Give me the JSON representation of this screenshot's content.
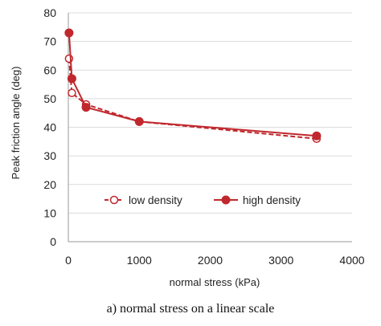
{
  "chart_data": {
    "type": "line",
    "xlabel": "normal stress (kPa)",
    "ylabel": "Peak friction angle (deg)",
    "xlim": [
      0,
      4000
    ],
    "ylim": [
      0,
      80
    ],
    "x_ticks": [
      0,
      1000,
      2000,
      3000,
      4000
    ],
    "y_ticks": [
      0,
      10,
      20,
      30,
      40,
      50,
      60,
      70,
      80
    ],
    "grid": "horizontal",
    "legend_position": "center-left",
    "series": [
      {
        "name": "low density",
        "color": "#c0282d",
        "line_style": "dashed",
        "marker": "open-circle",
        "x": [
          10,
          50,
          250,
          1000,
          3500
        ],
        "y": [
          64,
          52,
          48,
          42,
          36
        ]
      },
      {
        "name": "high density",
        "color": "#c0282d",
        "line_style": "solid",
        "marker": "filled-circle",
        "x": [
          10,
          50,
          250,
          1000,
          3500
        ],
        "y": [
          73,
          57,
          47,
          42,
          37
        ]
      }
    ]
  },
  "caption": "a) normal stress on a linear scale"
}
